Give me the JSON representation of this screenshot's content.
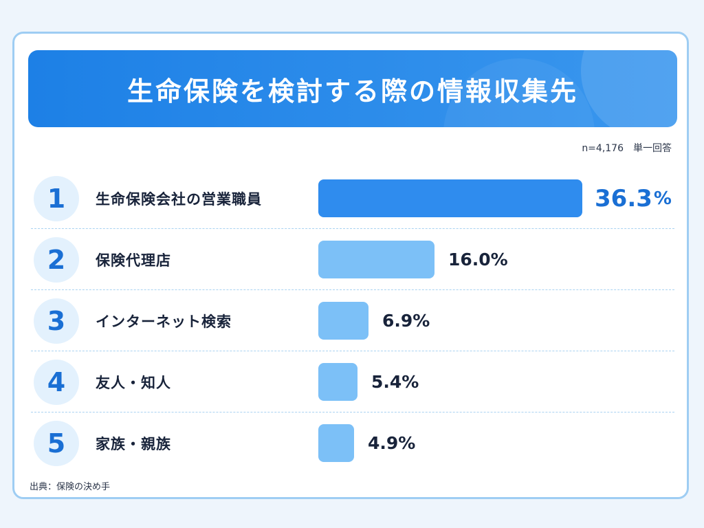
{
  "title": "生命保険を検討する際の情報収集先",
  "meta": "n=4,176　単一回答",
  "source": "出典：保険の決め手",
  "colors": {
    "highlight_bar": "#2f8cee",
    "bar": "#7cc0f7",
    "title_band": "#1d80e6",
    "rank_text": "#1a6fd4"
  },
  "chart_data": {
    "type": "bar",
    "orientation": "horizontal",
    "ranks": [
      "1",
      "2",
      "3",
      "4",
      "5"
    ],
    "categories": [
      "生命保険会社の営業職員",
      "保険代理店",
      "インターネット検索",
      "友人・知人",
      "家族・親族"
    ],
    "values": [
      36.3,
      16.0,
      6.9,
      5.4,
      4.9
    ],
    "value_labels": [
      "36.3",
      "16.0%",
      "6.9%",
      "5.4%",
      "4.9%"
    ],
    "unit": "%",
    "grid": false
  }
}
